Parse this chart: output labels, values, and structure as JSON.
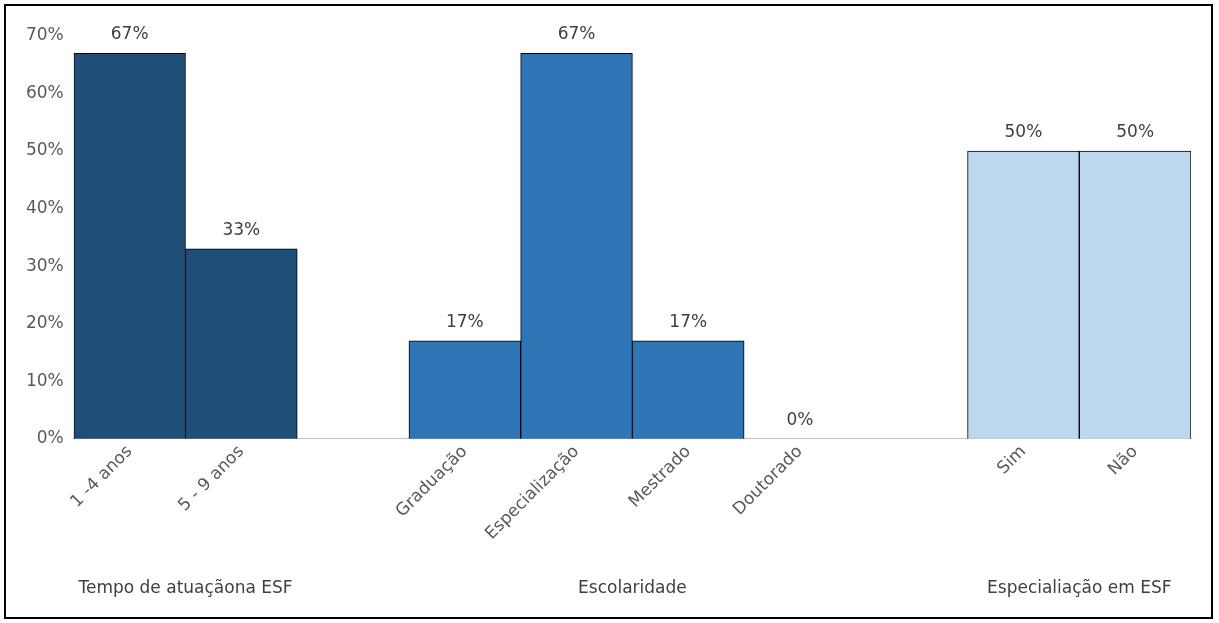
{
  "chart_data": {
    "type": "bar",
    "categories": [
      "1 -4 anos",
      "5 - 9 anos",
      null,
      "Graduação",
      "Especialização",
      "Mestrado",
      "Doutorado",
      null,
      "Sim",
      "Não"
    ],
    "values": [
      67,
      33,
      null,
      17,
      67,
      17,
      0,
      null,
      50,
      50
    ],
    "colors": [
      "#1f4e79",
      "#1f4e79",
      "#1f4e79",
      "#2e75b6",
      "#2e75b6",
      "#2e75b6",
      "#2e75b6",
      "#2e75b6",
      "#bdd7ee",
      "#bdd7ee"
    ],
    "value_labels": [
      "67%",
      "33%",
      null,
      "17%",
      "67%",
      "17%",
      "0%",
      null,
      "50%",
      "50%"
    ],
    "ylim": [
      0,
      70
    ],
    "yticks": [
      {
        "value": 0,
        "label": "0%"
      },
      {
        "value": 10,
        "label": "10%"
      },
      {
        "value": 20,
        "label": "20%"
      },
      {
        "value": 30,
        "label": "30%"
      },
      {
        "value": 40,
        "label": "40%"
      },
      {
        "value": 50,
        "label": "50%"
      },
      {
        "value": 60,
        "label": "60%"
      },
      {
        "value": 70,
        "label": "70%"
      }
    ],
    "annotations": [
      "Tempo de atuaçãona ESF",
      "Escolaridade",
      "Especialiação em ESF"
    ],
    "grid": false,
    "legend": false
  }
}
